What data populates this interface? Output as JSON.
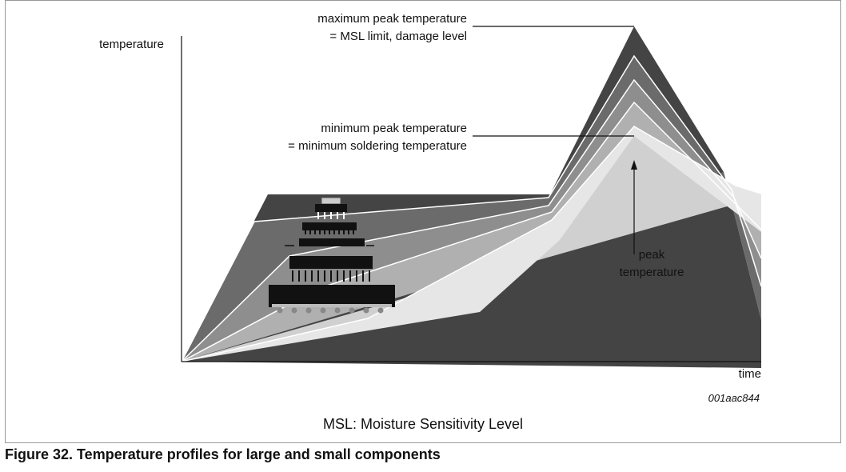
{
  "axis_labels": {
    "y": "temperature",
    "x": "time"
  },
  "annotations": {
    "maximum_peak": [
      "maximum peak temperature",
      "= MSL limit, damage level"
    ],
    "minimum_peak": [
      "minimum peak temperature",
      "= minimum soldering temperature"
    ],
    "peak": [
      "peak",
      "temperature"
    ]
  },
  "figure_id": "001aac844",
  "legend_note": "MSL: Moisture Sensitivity Level",
  "caption": "Figure 32.  Temperature profiles for large and small components"
}
